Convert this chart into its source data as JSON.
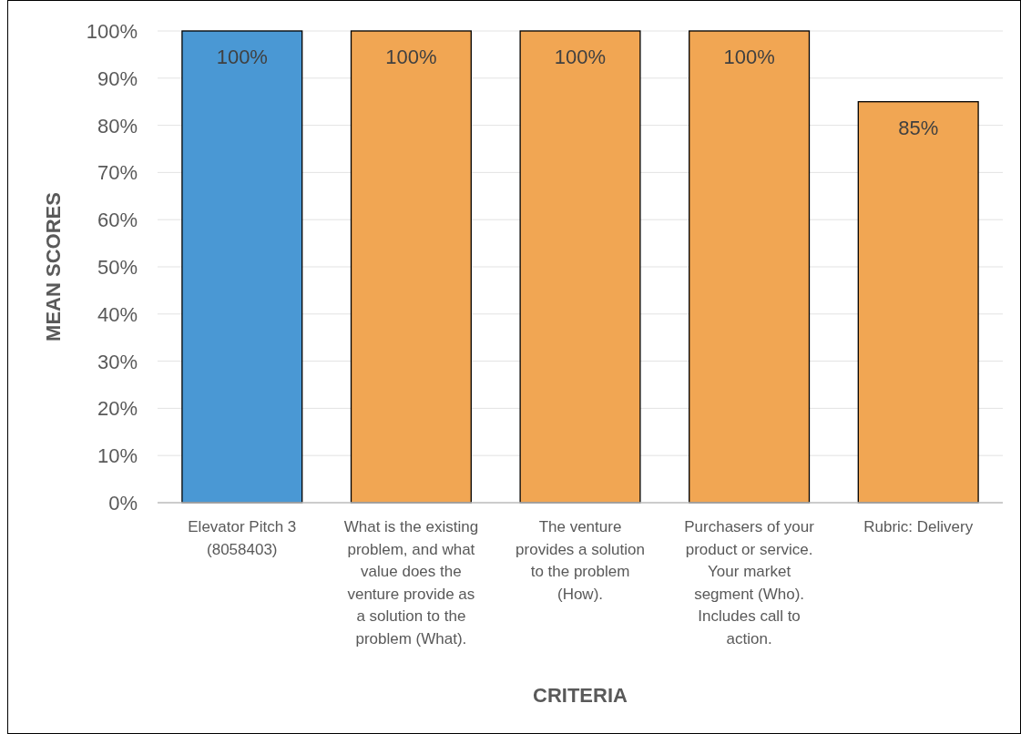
{
  "chart_data": {
    "type": "bar",
    "xlabel": "CRITERIA",
    "ylabel": "MEAN SCORES",
    "categories": [
      "Elevator Pitch 3 (8058403)",
      "What is the existing problem, and what value does the venture provide as a solution to the problem (What).",
      "The venture provides a solution to the problem (How).",
      "Purchasers of your product or service. Your market segment (Who). Includes call to action.",
      "Rubric: Delivery"
    ],
    "values": [
      100,
      100,
      100,
      100,
      85
    ],
    "colors": [
      "#4a98d4",
      "#f1a653",
      "#f1a653",
      "#f1a653",
      "#f1a653"
    ],
    "value_labels": [
      "100%",
      "100%",
      "100%",
      "100%",
      "85%"
    ],
    "ylim": [
      0,
      100
    ],
    "yticks": [
      {
        "value": 0,
        "label": "0%"
      },
      {
        "value": 10,
        "label": "10%"
      },
      {
        "value": 20,
        "label": "20%"
      },
      {
        "value": 30,
        "label": "30%"
      },
      {
        "value": 40,
        "label": "40%"
      },
      {
        "value": 50,
        "label": "50%"
      },
      {
        "value": 60,
        "label": "60%"
      },
      {
        "value": 70,
        "label": "70%"
      },
      {
        "value": 80,
        "label": "80%"
      },
      {
        "value": 90,
        "label": "90%"
      },
      {
        "value": 100,
        "label": "100%"
      }
    ],
    "grid": "y"
  }
}
